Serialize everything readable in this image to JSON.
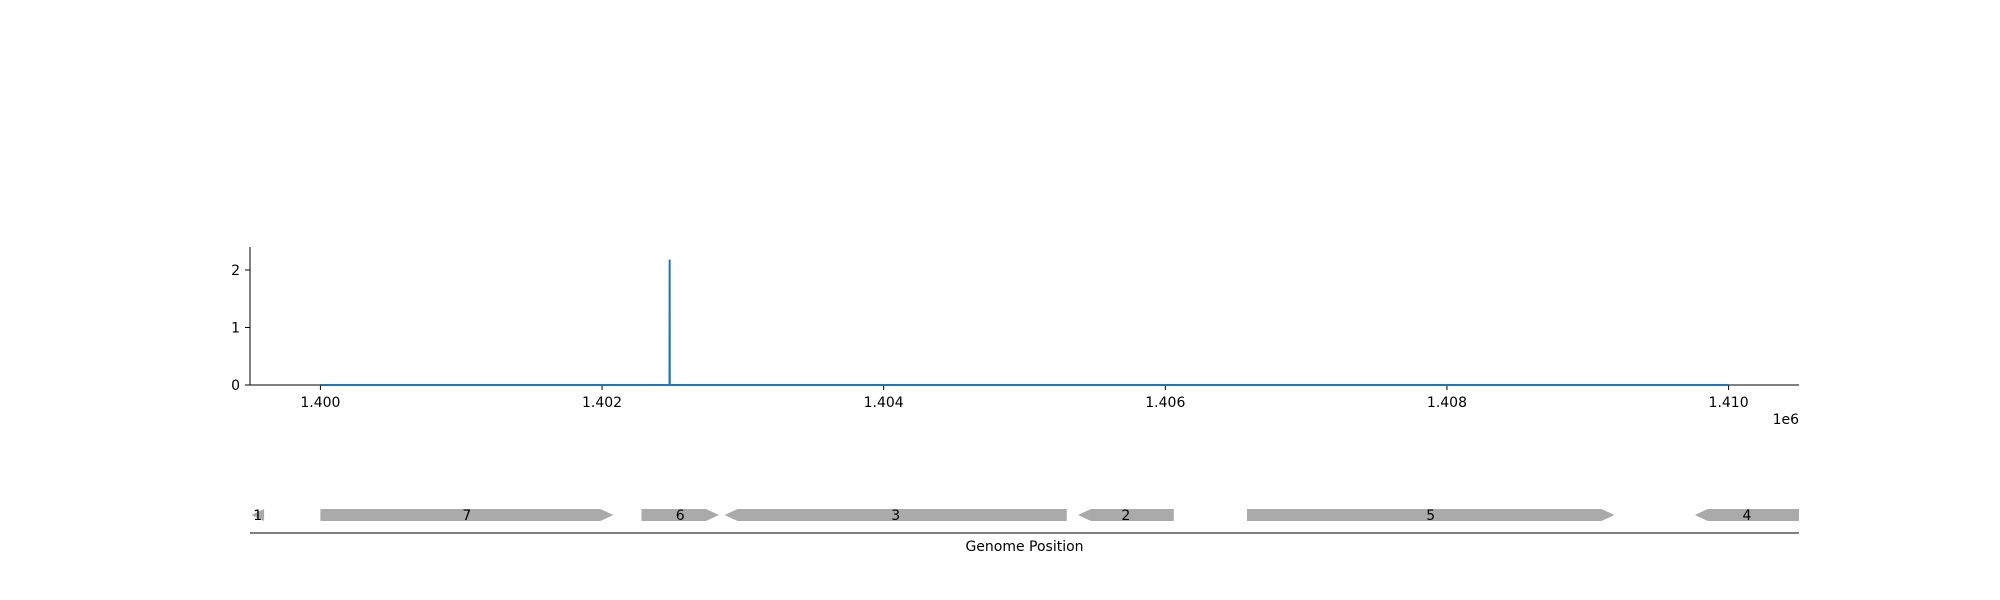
{
  "chart_data": {
    "type": "line",
    "title": "",
    "ylabel": "",
    "xlabel": "",
    "x_offset_label": "1e6",
    "xlim": [
      1399500,
      1410500
    ],
    "ylim": [
      0,
      2.4
    ],
    "x_ticks": [
      1400000,
      1402000,
      1404000,
      1406000,
      1408000,
      1410000
    ],
    "x_tick_labels": [
      "1.400",
      "1.402",
      "1.404",
      "1.406",
      "1.408",
      "1.410"
    ],
    "y_ticks": [
      0,
      1,
      2
    ],
    "y_tick_labels": [
      "0",
      "1",
      "2"
    ],
    "grid": false,
    "line_color": "#1f77b4",
    "series": [
      {
        "x": [
          1400000,
          1402479,
          1402480,
          1402481,
          1410000
        ],
        "values": [
          0,
          0,
          2.18,
          0,
          0
        ]
      }
    ]
  },
  "gene_track": {
    "xlabel": "Genome Position",
    "color": "#aaaaaa",
    "genes": [
      {
        "label": "1",
        "start": 1399510,
        "end": 1399600,
        "strand": -1
      },
      {
        "label": "7",
        "start": 1400000,
        "end": 1402080,
        "strand": 1
      },
      {
        "label": "6",
        "start": 1402280,
        "end": 1402830,
        "strand": 1
      },
      {
        "label": "3",
        "start": 1402870,
        "end": 1405300,
        "strand": -1
      },
      {
        "label": "2",
        "start": 1405380,
        "end": 1406060,
        "strand": -1
      },
      {
        "label": "5",
        "start": 1406580,
        "end": 1409190,
        "strand": 1
      },
      {
        "label": "4",
        "start": 1409760,
        "end": 1410500,
        "strand": -1
      }
    ]
  }
}
